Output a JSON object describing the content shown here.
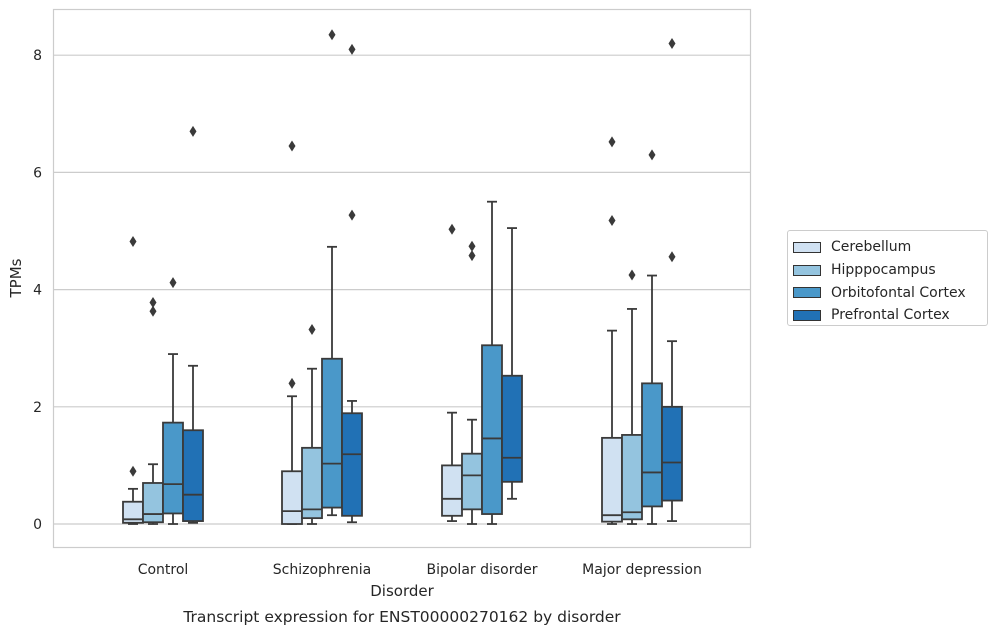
{
  "chart_data": {
    "type": "box",
    "title": "Transcript expression for ENST00000270162 by disorder",
    "xlabel": "Disorder",
    "ylabel": "TPMs",
    "ylim": [
      -0.4,
      8.8
    ],
    "yticks": [
      0,
      2,
      4,
      6,
      8
    ],
    "grid": "horizontal",
    "legend_position": "right",
    "categories": [
      "Control",
      "Schizophrenia",
      "Bipolar disorder",
      "Major depression"
    ],
    "series": [
      {
        "name": "Cerebellum",
        "color": "#d0e1f2",
        "boxes": [
          {
            "whisker_low": 0.0,
            "q1": 0.02,
            "median": 0.08,
            "q3": 0.38,
            "whisker_high": 0.6,
            "outliers": [
              0.9,
              4.82
            ]
          },
          {
            "whisker_low": 0.0,
            "q1": 0.0,
            "median": 0.22,
            "q3": 0.9,
            "whisker_high": 2.18,
            "outliers": [
              2.4,
              6.45
            ]
          },
          {
            "whisker_low": 0.05,
            "q1": 0.14,
            "median": 0.43,
            "q3": 1.0,
            "whisker_high": 1.9,
            "outliers": [
              5.03
            ]
          },
          {
            "whisker_low": 0.0,
            "q1": 0.04,
            "median": 0.15,
            "q3": 1.47,
            "whisker_high": 3.3,
            "outliers": [
              5.18,
              6.52
            ]
          }
        ]
      },
      {
        "name": "Hipppocampus",
        "color": "#94c4df",
        "boxes": [
          {
            "whisker_low": 0.0,
            "q1": 0.03,
            "median": 0.17,
            "q3": 0.7,
            "whisker_high": 1.02,
            "outliers": [
              3.63,
              3.78
            ]
          },
          {
            "whisker_low": 0.0,
            "q1": 0.1,
            "median": 0.25,
            "q3": 1.3,
            "whisker_high": 2.65,
            "outliers": [
              3.32
            ]
          },
          {
            "whisker_low": 0.0,
            "q1": 0.25,
            "median": 0.83,
            "q3": 1.2,
            "whisker_high": 1.78,
            "outliers": [
              4.58,
              4.74
            ]
          },
          {
            "whisker_low": 0.0,
            "q1": 0.08,
            "median": 0.2,
            "q3": 1.52,
            "whisker_high": 3.67,
            "outliers": [
              4.25
            ]
          }
        ]
      },
      {
        "name": "Orbitofontal Cortex",
        "color": "#4a98c9",
        "boxes": [
          {
            "whisker_low": 0.0,
            "q1": 0.18,
            "median": 0.68,
            "q3": 1.73,
            "whisker_high": 2.9,
            "outliers": [
              4.12
            ]
          },
          {
            "whisker_low": 0.15,
            "q1": 0.28,
            "median": 1.03,
            "q3": 2.82,
            "whisker_high": 4.73,
            "outliers": [
              8.35
            ]
          },
          {
            "whisker_low": 0.0,
            "q1": 0.17,
            "median": 1.46,
            "q3": 3.05,
            "whisker_high": 5.5,
            "outliers": []
          },
          {
            "whisker_low": 0.0,
            "q1": 0.3,
            "median": 0.88,
            "q3": 2.4,
            "whisker_high": 4.24,
            "outliers": [
              6.3
            ]
          }
        ]
      },
      {
        "name": "Prefrontal Cortex",
        "color": "#2171b5",
        "boxes": [
          {
            "whisker_low": 0.02,
            "q1": 0.05,
            "median": 0.5,
            "q3": 1.6,
            "whisker_high": 2.7,
            "outliers": [
              6.7
            ]
          },
          {
            "whisker_low": 0.03,
            "q1": 0.14,
            "median": 1.19,
            "q3": 1.89,
            "whisker_high": 2.1,
            "outliers": [
              5.27,
              8.1
            ]
          },
          {
            "whisker_low": 0.43,
            "q1": 0.72,
            "median": 1.13,
            "q3": 2.53,
            "whisker_high": 5.05,
            "outliers": []
          },
          {
            "whisker_low": 0.05,
            "q1": 0.4,
            "median": 1.05,
            "q3": 2.0,
            "whisker_high": 3.12,
            "outliers": [
              4.56,
              8.2
            ]
          }
        ]
      }
    ]
  }
}
